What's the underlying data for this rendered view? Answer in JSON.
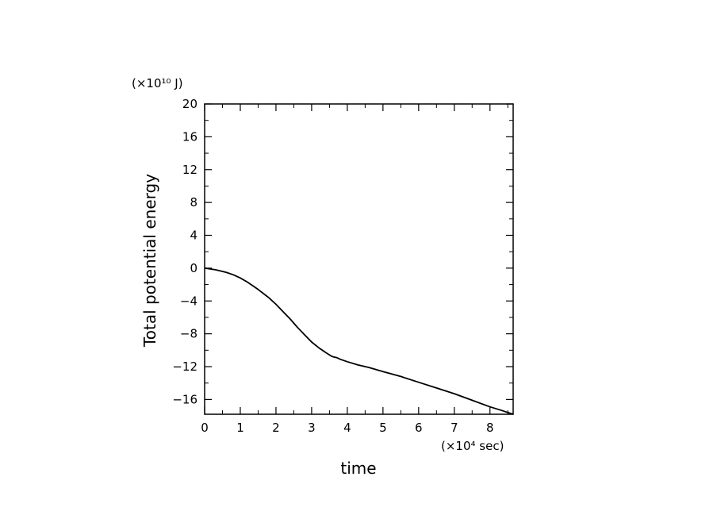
{
  "chart_data": {
    "type": "line",
    "xlabel": "time",
    "ylabel": "Total potential energy",
    "x_unit": "(×10⁴ sec)",
    "y_unit": "(×10¹⁰ J)",
    "xlim": [
      0,
      8.65
    ],
    "ylim": [
      -17.8,
      20
    ],
    "x_ticks": [
      0,
      1,
      2,
      3,
      4,
      5,
      6,
      7,
      8
    ],
    "y_ticks": [
      -16,
      -12,
      -8,
      -4,
      0,
      4,
      8,
      12,
      16,
      20
    ],
    "x_tick_labels": [
      "0",
      "1",
      "2",
      "3",
      "4",
      "5",
      "6",
      "7",
      "8"
    ],
    "y_tick_labels": [
      "−16",
      "−12",
      "−8",
      "−4",
      "0",
      "4",
      "8",
      "12",
      "16",
      "20"
    ],
    "grid": false,
    "series": [
      {
        "x": [
          0,
          0.3,
          0.6,
          0.8,
          1.0,
          1.2,
          1.5,
          1.8,
          2.0,
          2.2,
          2.4,
          2.6,
          2.8,
          3.0,
          3.2,
          3.4,
          3.55,
          3.6,
          3.7,
          3.8,
          4.0,
          4.3,
          4.6,
          5.0,
          5.5,
          6.0,
          6.5,
          7.0,
          7.5,
          8.0,
          8.3,
          8.65
        ],
        "y": [
          0,
          -0.2,
          -0.5,
          -0.8,
          -1.2,
          -1.7,
          -2.6,
          -3.6,
          -4.4,
          -5.3,
          -6.2,
          -7.2,
          -8.1,
          -9.0,
          -9.7,
          -10.3,
          -10.7,
          -10.8,
          -10.9,
          -11.1,
          -11.4,
          -11.8,
          -12.1,
          -12.6,
          -13.2,
          -13.9,
          -14.6,
          -15.3,
          -16.1,
          -16.9,
          -17.3,
          -17.8
        ]
      }
    ]
  }
}
